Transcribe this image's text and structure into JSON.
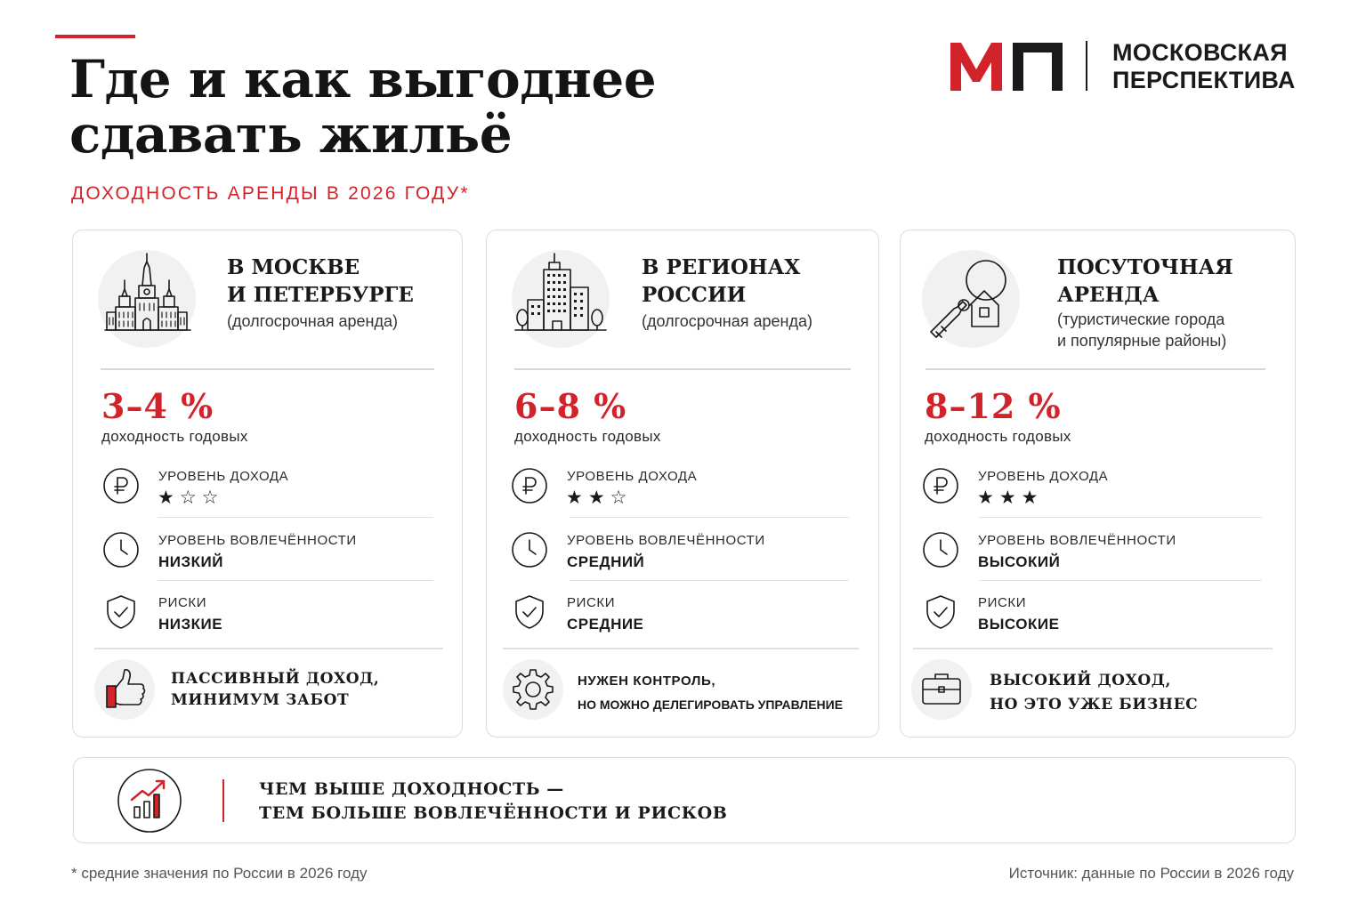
{
  "header": {
    "title_line1": "Где и как выгоднее",
    "title_line2": "сдавать жильё",
    "subtitle": "ДОХОДНОСТЬ АРЕНДЫ В 2026 ГОДУ*"
  },
  "logo": {
    "mark": "МП",
    "name_line1": "МОСКОВСКАЯ",
    "name_line2": "ПЕРСПЕКТИВА"
  },
  "colors": {
    "accent": "#d2232a",
    "text": "#1a1a1a",
    "border": "#dcdcdc"
  },
  "cards": [
    {
      "title_line1": "В МОСКВЕ",
      "title_line2": "И ПЕТЕРБУРГЕ",
      "note_line1": "(долгосрочная аренда)",
      "note_line2": "",
      "icon": "city-skyline-icon",
      "yield": "3–4 %",
      "yield_label": "доходность годовых",
      "income_label": "УРОВЕНЬ ДОХОДА",
      "income_stars": "★☆☆",
      "income_rating": 1,
      "involvement_label": "УРОВЕНЬ ВОВЛЕЧЁННОСТИ",
      "involvement_value": "НИЗКИЙ",
      "risk_label": "РИСКИ",
      "risk_value": "НИЗКИЕ",
      "footer_icon": "thumbs-up-icon",
      "footer_line1": "ПАССИВНЫЙ ДОХОД,",
      "footer_line2": "МИНИМУМ ЗАБОТ"
    },
    {
      "title_line1": "В РЕГИОНАХ",
      "title_line2": "РОССИИ",
      "note_line1": "(долгосрочная аренда)",
      "note_line2": "",
      "icon": "apartment-building-icon",
      "yield": "6–8 %",
      "yield_label": "доходность годовых",
      "income_label": "УРОВЕНЬ ДОХОДА",
      "income_stars": "★★☆",
      "income_rating": 2,
      "involvement_label": "УРОВЕНЬ ВОВЛЕЧЁННОСТИ",
      "involvement_value": "СРЕДНИЙ",
      "risk_label": "РИСКИ",
      "risk_value": "СРЕДНИЕ",
      "footer_icon": "gear-icon",
      "footer_line1": "НУЖЕН КОНТРОЛЬ,",
      "footer_line2": "НО МОЖНО ДЕЛЕГИРОВАТЬ УПРАВЛЕНИЕ"
    },
    {
      "title_line1": "ПОСУТОЧНАЯ",
      "title_line2": "АРЕНДА",
      "note_line1": "(туристические города",
      "note_line2": "и популярные районы)",
      "icon": "house-key-icon",
      "yield": "8–12 %",
      "yield_label": "доходность годовых",
      "income_label": "УРОВЕНЬ ДОХОДА",
      "income_stars": "★★★",
      "income_rating": 3,
      "involvement_label": "УРОВЕНЬ ВОВЛЕЧЁННОСТИ",
      "involvement_value": "ВЫСОКИЙ",
      "risk_label": "РИСКИ",
      "risk_value": "ВЫСОКИЕ",
      "footer_icon": "briefcase-icon",
      "footer_line1": "ВЫСОКИЙ ДОХОД,",
      "footer_line2": "НО ЭТО УЖЕ БИЗНЕС"
    }
  ],
  "summary": {
    "icon": "growth-chart-icon",
    "line1": "ЧЕМ ВЫШЕ ДОХОДНОСТЬ —",
    "line2": "ТЕМ БОЛЬШЕ ВОВЛЕЧЁННОСТИ И РИСКОВ"
  },
  "footer": {
    "footnote": "* средние значения по России в 2026 году",
    "source": "Источник: данные по России в 2026 году"
  }
}
